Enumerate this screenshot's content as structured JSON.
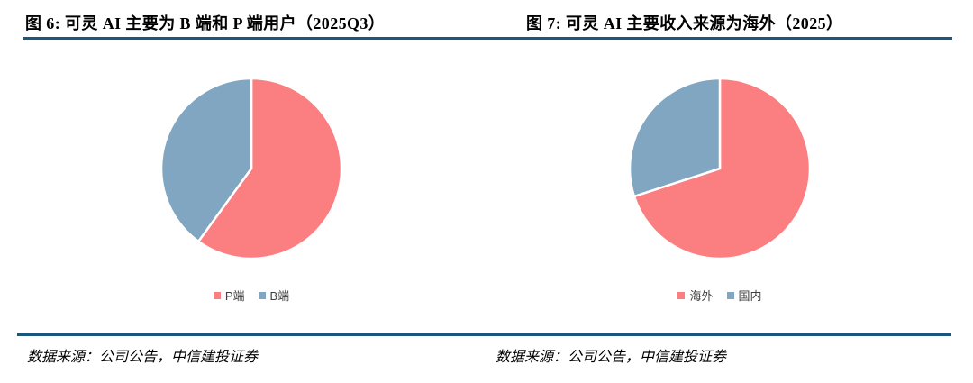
{
  "page": {
    "background": "#ffffff",
    "rule_color": "#1B567F"
  },
  "chart_data": [
    {
      "type": "pie",
      "figure_label": "图 6",
      "title": "图 6: 可灵 AI 主要为 B 端和 P 端用户（2025Q3）",
      "labels": [
        "P端",
        "B端"
      ],
      "values": [
        60,
        40
      ],
      "unit": "percent (estimated from slice angles)",
      "colors": [
        "#FB7E80",
        "#80A6C2"
      ],
      "start_angle_deg": 0,
      "direction": "clockwise",
      "slice_border_color": "#ffffff",
      "legend_position": "bottom",
      "source_note": "数据来源：公司公告，中信建投证券"
    },
    {
      "type": "pie",
      "figure_label": "图 7",
      "title": "图 7: 可灵 AI 主要收入来源为海外（2025）",
      "labels": [
        "海外",
        "国内"
      ],
      "values": [
        70,
        30
      ],
      "unit": "percent (estimated from slice angles)",
      "colors": [
        "#FB7E80",
        "#80A6C2"
      ],
      "start_angle_deg": 0,
      "direction": "clockwise",
      "slice_border_color": "#ffffff",
      "legend_position": "bottom",
      "source_note": "数据来源：公司公告，中信建投证券"
    }
  ]
}
